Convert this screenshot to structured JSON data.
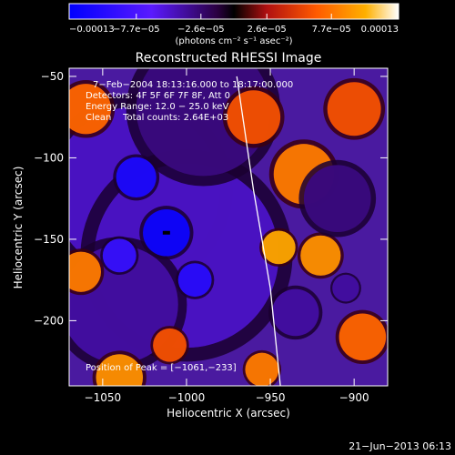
{
  "chart_data": {
    "type": "heatmap",
    "title": "Reconstructed RHESSI Image",
    "xlabel": "Heliocentric X (arcsec)",
    "ylabel": "Heliocentric Y (arcsec)",
    "xlim": [
      -1070,
      -880
    ],
    "ylim": [
      -240,
      -45
    ],
    "xticks": [
      -1050,
      -1000,
      -950,
      -900
    ],
    "xtick_labels": [
      "−1050",
      "−1000",
      "−950",
      "−900"
    ],
    "yticks": [
      -50,
      -100,
      -150,
      -200
    ],
    "ytick_labels": [
      "−50",
      "−100",
      "−150",
      "−200"
    ],
    "colorbar": {
      "min": -0.00013,
      "max": 0.00013,
      "ticks": [
        -0.00013,
        -7.7e-05,
        -2.6e-05,
        2.6e-05,
        7.7e-05,
        0.00013
      ],
      "tick_labels": [
        "−0.00013",
        "−7.7e−05",
        "−2.6e−05",
        "2.6e−05",
        "7.7e−05",
        "0.00013"
      ],
      "units": "(photons cm⁻² s⁻¹ asec⁻²)"
    },
    "annotations": {
      "time_range": "7−Feb−2004 18:13:16.000 to 18:17:00.000",
      "detectors": "Detectors: 4F 5F 6F 7F 8F, Att 0",
      "energy_range": "Energy Range: 12.0 − 25.0 keV",
      "clean": "Clean    Total counts: 2.64E+03",
      "peak": "Position of Peak = [−1061,−233]"
    },
    "peak_marker": {
      "x": -1012,
      "y": -146
    },
    "limb_curve": [
      {
        "x": -970,
        "y": -50
      },
      {
        "x": -960,
        "y": -120
      },
      {
        "x": -950,
        "y": -180
      },
      {
        "x": -944,
        "y": -240
      }
    ],
    "blobs": [
      {
        "x": -1030,
        "y": -120,
        "r": 50,
        "v": -5e-05
      },
      {
        "x": -1000,
        "y": -160,
        "r": 55,
        "v": -5e-05
      },
      {
        "x": -1040,
        "y": -190,
        "r": 35,
        "v": -4e-05
      },
      {
        "x": -990,
        "y": -70,
        "r": 40,
        "v": -3e-05
      },
      {
        "x": -1012,
        "y": -146,
        "r": 14,
        "v": -0.00012
      },
      {
        "x": -1030,
        "y": -112,
        "r": 12,
        "v": -0.00011
      },
      {
        "x": -995,
        "y": -175,
        "r": 10,
        "v": -0.0001
      },
      {
        "x": -1040,
        "y": -160,
        "r": 10,
        "v": -9e-05
      },
      {
        "x": -1060,
        "y": -70,
        "r": 15,
        "v": 7e-05
      },
      {
        "x": -1063,
        "y": -170,
        "r": 12,
        "v": 8e-05
      },
      {
        "x": -1040,
        "y": -235,
        "r": 14,
        "v": 9e-05
      },
      {
        "x": -1010,
        "y": -215,
        "r": 10,
        "v": 6e-05
      },
      {
        "x": -960,
        "y": -75,
        "r": 16,
        "v": 6e-05
      },
      {
        "x": -930,
        "y": -110,
        "r": 18,
        "v": 8e-05
      },
      {
        "x": -920,
        "y": -160,
        "r": 12,
        "v": 9e-05
      },
      {
        "x": -955,
        "y": -230,
        "r": 10,
        "v": 8e-05
      },
      {
        "x": -895,
        "y": -210,
        "r": 14,
        "v": 7e-05
      },
      {
        "x": -900,
        "y": -70,
        "r": 16,
        "v": 6e-05
      },
      {
        "x": -945,
        "y": -155,
        "r": 10,
        "v": 0.0001
      },
      {
        "x": -910,
        "y": -125,
        "r": 20,
        "v": -3e-05
      },
      {
        "x": -935,
        "y": -195,
        "r": 14,
        "v": -4e-05
      },
      {
        "x": -905,
        "y": -180,
        "r": 8,
        "v": -4e-05
      }
    ]
  },
  "footer": {
    "timestamp": "21−Jun−2013 06:13"
  }
}
